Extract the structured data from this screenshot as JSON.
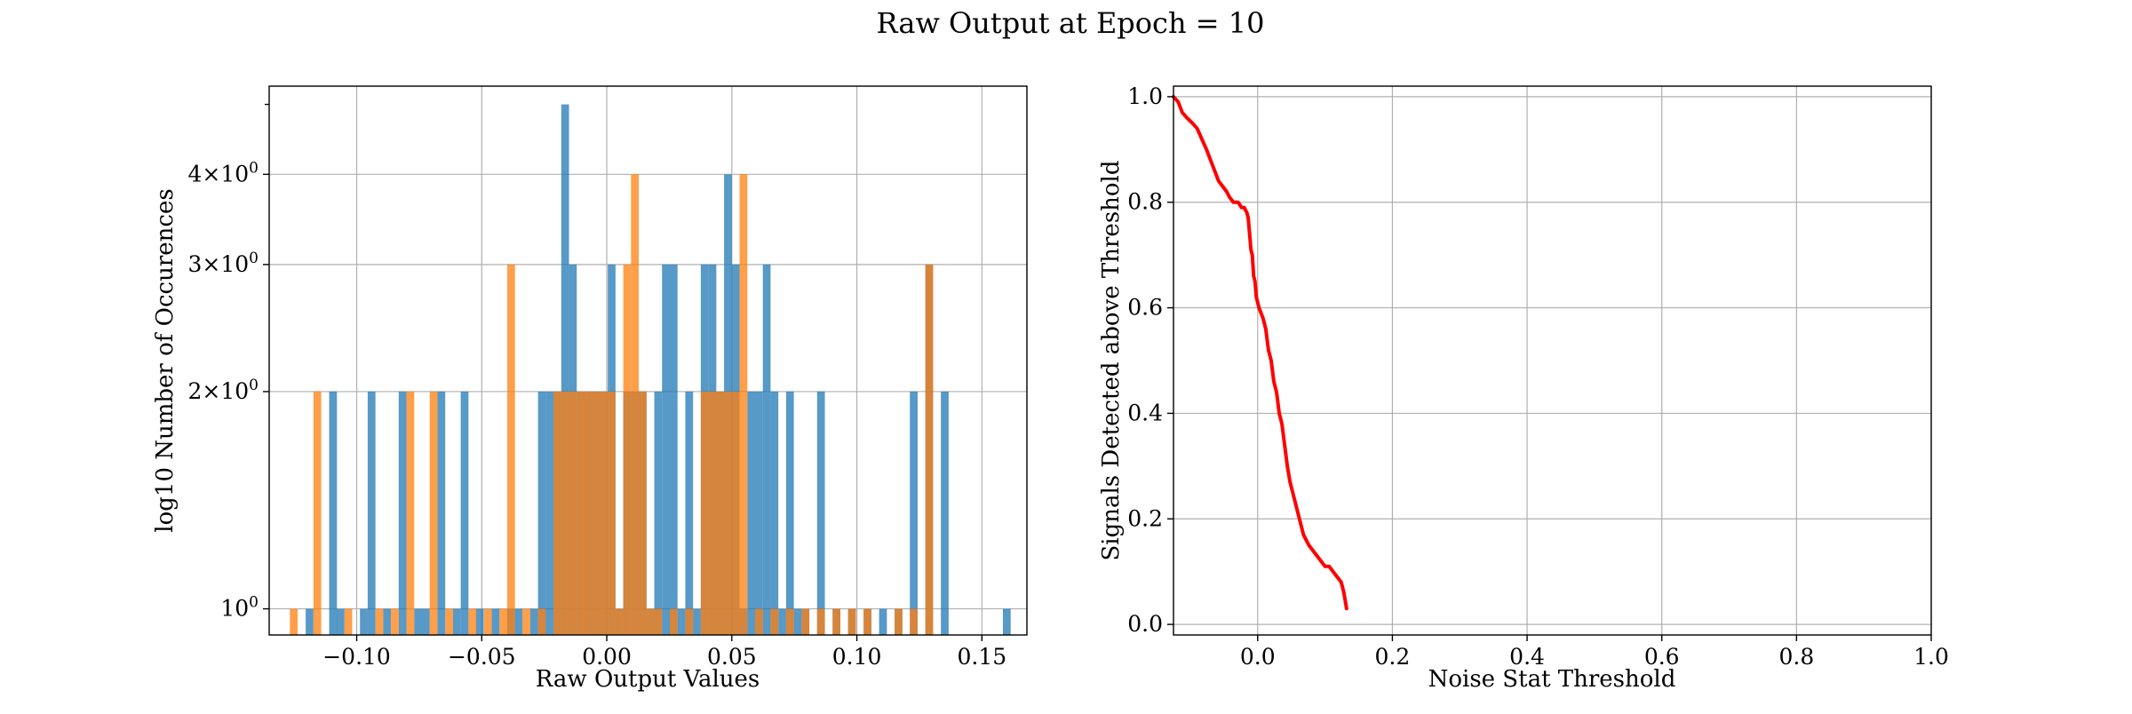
{
  "figure": {
    "title": "Raw Output at Epoch = 10"
  },
  "chart_data": [
    {
      "type": "bar",
      "subtype": "overlaid-histogram",
      "title": "",
      "xlabel": "Raw Output Values",
      "ylabel": "log10 Number of Occurences",
      "yscale": "log",
      "xlim": [
        -0.135,
        0.168
      ],
      "ylim": [
        0.92,
        5.3
      ],
      "bin_width": 0.0031,
      "xticks": [
        -0.1,
        -0.05,
        0.0,
        0.05,
        0.1,
        0.15
      ],
      "xtick_labels": [
        "−0.10",
        "−0.05",
        "0.00",
        "0.05",
        "0.10",
        "0.15"
      ],
      "yticks": [
        {
          "value": 1,
          "mantissa": "",
          "base": "10",
          "exp": "0"
        },
        {
          "value": 2,
          "mantissa": "2×",
          "base": "10",
          "exp": "0"
        },
        {
          "value": 3,
          "mantissa": "3×",
          "base": "10",
          "exp": "0"
        },
        {
          "value": 4,
          "mantissa": "4×",
          "base": "10",
          "exp": "0"
        }
      ],
      "grid": true,
      "series": [
        {
          "color": "#1f77b4",
          "opacity": 0.75,
          "bins": [
            [
              -0.1204,
              1
            ],
            [
              -0.111,
              2
            ],
            [
              -0.108,
              1
            ],
            [
              -0.0987,
              1
            ],
            [
              -0.0956,
              2
            ],
            [
              -0.0894,
              1
            ],
            [
              -0.0832,
              2
            ],
            [
              -0.077,
              1
            ],
            [
              -0.0739,
              1
            ],
            [
              -0.0677,
              2
            ],
            [
              -0.0615,
              1
            ],
            [
              -0.0584,
              2
            ],
            [
              -0.0523,
              1
            ],
            [
              -0.046,
              1
            ],
            [
              -0.0399,
              1
            ],
            [
              -0.0368,
              1
            ],
            [
              -0.0306,
              1
            ],
            [
              -0.0275,
              2
            ],
            [
              -0.0244,
              2
            ],
            [
              -0.0213,
              2
            ],
            [
              -0.0182,
              5
            ],
            [
              -0.0151,
              3
            ],
            [
              -0.012,
              2
            ],
            [
              -0.0089,
              2
            ],
            [
              -0.0058,
              2
            ],
            [
              -0.0027,
              2
            ],
            [
              0.0004,
              3
            ],
            [
              0.0035,
              1
            ],
            [
              0.0066,
              2
            ],
            [
              0.0097,
              2
            ],
            [
              0.0128,
              2
            ],
            [
              0.0159,
              1
            ],
            [
              0.019,
              2
            ],
            [
              0.0221,
              3
            ],
            [
              0.0252,
              3
            ],
            [
              0.0283,
              1
            ],
            [
              0.0314,
              2
            ],
            [
              0.0345,
              1
            ],
            [
              0.0376,
              3
            ],
            [
              0.0407,
              3
            ],
            [
              0.0438,
              2
            ],
            [
              0.0469,
              4
            ],
            [
              0.05,
              3
            ],
            [
              0.0531,
              1
            ],
            [
              0.0562,
              2
            ],
            [
              0.0593,
              2
            ],
            [
              0.0624,
              3
            ],
            [
              0.0655,
              2
            ],
            [
              0.0686,
              1
            ],
            [
              0.0717,
              2
            ],
            [
              0.0748,
              1
            ],
            [
              0.0779,
              1
            ],
            [
              0.0841,
              2
            ],
            [
              0.0903,
              1
            ],
            [
              0.0965,
              1
            ],
            [
              0.1027,
              1
            ],
            [
              0.1089,
              1
            ],
            [
              0.1151,
              1
            ],
            [
              0.1212,
              2
            ],
            [
              0.1274,
              3
            ],
            [
              0.1336,
              2
            ],
            [
              0.1584,
              1
            ]
          ]
        },
        {
          "color": "#ff7f0e",
          "opacity": 0.75,
          "bins": [
            [
              -0.1267,
              1
            ],
            [
              -0.1173,
              2
            ],
            [
              -0.1049,
              1
            ],
            [
              -0.0925,
              1
            ],
            [
              -0.0863,
              1
            ],
            [
              -0.0801,
              2
            ],
            [
              -0.0708,
              2
            ],
            [
              -0.0646,
              1
            ],
            [
              -0.0553,
              1
            ],
            [
              -0.0491,
              1
            ],
            [
              -0.0429,
              1
            ],
            [
              -0.0398,
              3
            ],
            [
              -0.0337,
              1
            ],
            [
              -0.0275,
              1
            ],
            [
              -0.0213,
              2
            ],
            [
              -0.0182,
              2
            ],
            [
              -0.0151,
              2
            ],
            [
              -0.012,
              2
            ],
            [
              -0.0089,
              2
            ],
            [
              -0.0058,
              2
            ],
            [
              -0.0027,
              2
            ],
            [
              0.0004,
              2
            ],
            [
              0.0035,
              1
            ],
            [
              0.0066,
              3
            ],
            [
              0.0097,
              4
            ],
            [
              0.0128,
              2
            ],
            [
              0.0159,
              1
            ],
            [
              0.019,
              1
            ],
            [
              0.0252,
              1
            ],
            [
              0.0314,
              1
            ],
            [
              0.0376,
              2
            ],
            [
              0.0407,
              2
            ],
            [
              0.0438,
              2
            ],
            [
              0.0469,
              2
            ],
            [
              0.05,
              2
            ],
            [
              0.0531,
              4
            ],
            [
              0.0593,
              1
            ],
            [
              0.0655,
              1
            ],
            [
              0.0717,
              1
            ],
            [
              0.0779,
              1
            ],
            [
              0.0841,
              1
            ],
            [
              0.0903,
              1
            ],
            [
              0.0965,
              1
            ],
            [
              0.1027,
              1
            ],
            [
              0.1151,
              1
            ],
            [
              0.1212,
              1
            ],
            [
              0.1274,
              3
            ]
          ]
        }
      ]
    },
    {
      "type": "line",
      "title": "",
      "xlabel": "Noise Stat Threshold",
      "ylabel": "Signals Detected above Threshold",
      "xlim": [
        -0.125,
        1.0
      ],
      "ylim": [
        -0.02,
        1.02
      ],
      "xticks": [
        0.0,
        0.2,
        0.4,
        0.6,
        0.8,
        1.0
      ],
      "xtick_labels": [
        "0.0",
        "0.2",
        "0.4",
        "0.6",
        "0.8",
        "1.0"
      ],
      "yticks": [
        0.0,
        0.2,
        0.4,
        0.6,
        0.8,
        1.0
      ],
      "ytick_labels": [
        "0.0",
        "0.2",
        "0.4",
        "0.6",
        "0.8",
        "1.0"
      ],
      "grid": true,
      "series": [
        {
          "color": "#ff0000",
          "x": [
            -0.125,
            -0.118,
            -0.112,
            -0.105,
            -0.097,
            -0.09,
            -0.083,
            -0.076,
            -0.07,
            -0.064,
            -0.058,
            -0.052,
            -0.046,
            -0.042,
            -0.036,
            -0.033,
            -0.029,
            -0.024,
            -0.02,
            -0.016,
            -0.014,
            -0.012,
            -0.01,
            -0.008,
            -0.006,
            -0.004,
            -0.002,
            0.002,
            0.005,
            0.008,
            0.01,
            0.012,
            0.014,
            0.016,
            0.02,
            0.024,
            0.028,
            0.032,
            0.036,
            0.04,
            0.044,
            0.048,
            0.052,
            0.056,
            0.06,
            0.064,
            0.068,
            0.072,
            0.076,
            0.082,
            0.088,
            0.094,
            0.1,
            0.106,
            0.112,
            0.118,
            0.124,
            0.128,
            0.132
          ],
          "y": [
            1.0,
            0.99,
            0.97,
            0.96,
            0.95,
            0.94,
            0.92,
            0.9,
            0.88,
            0.86,
            0.84,
            0.83,
            0.82,
            0.81,
            0.8,
            0.8,
            0.8,
            0.79,
            0.79,
            0.78,
            0.77,
            0.74,
            0.71,
            0.7,
            0.66,
            0.65,
            0.62,
            0.6,
            0.59,
            0.58,
            0.57,
            0.56,
            0.54,
            0.52,
            0.5,
            0.46,
            0.44,
            0.4,
            0.38,
            0.34,
            0.3,
            0.27,
            0.25,
            0.23,
            0.21,
            0.19,
            0.17,
            0.16,
            0.15,
            0.14,
            0.13,
            0.12,
            0.11,
            0.11,
            0.1,
            0.09,
            0.08,
            0.06,
            0.03
          ]
        }
      ]
    }
  ]
}
